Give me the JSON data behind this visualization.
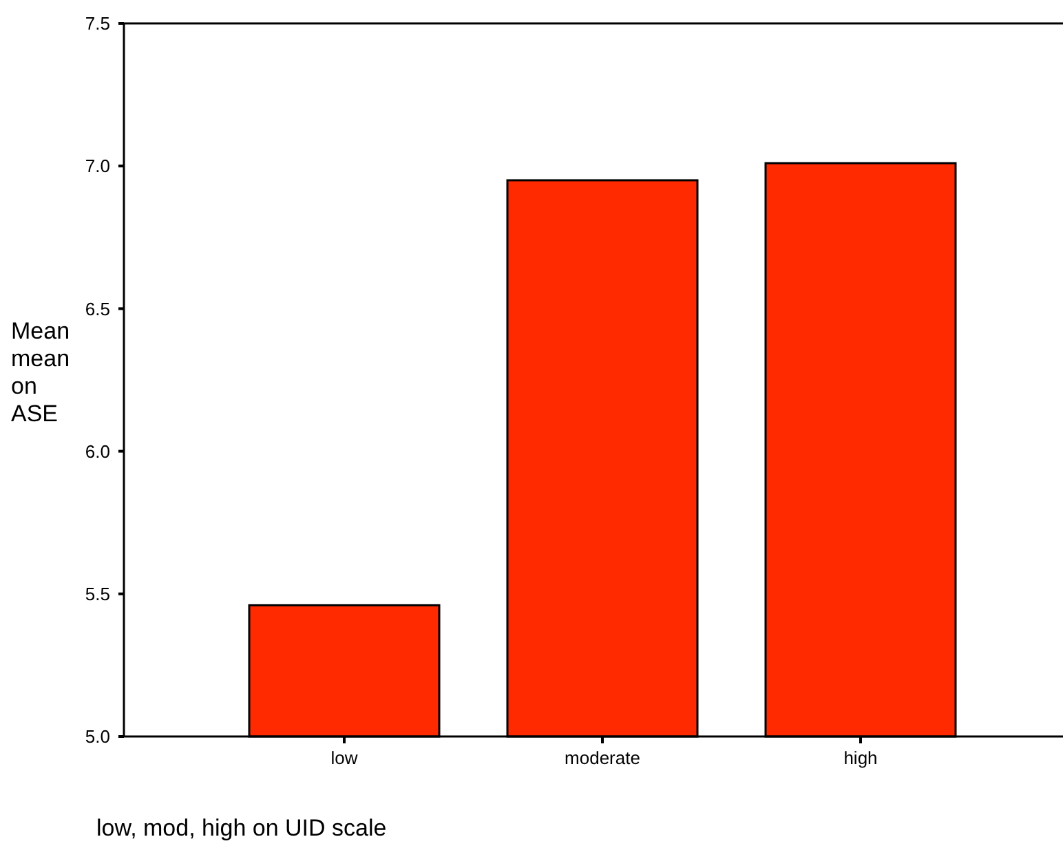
{
  "chart_data": {
    "type": "bar",
    "xlabel": "low, mod, high on UID scale",
    "ylabel": "Mean mean on ASE",
    "categories": [
      "low",
      "moderate",
      "high"
    ],
    "values": [
      5.46,
      6.95,
      7.01
    ],
    "color": "#ff2a00",
    "ylim": [
      5.0,
      7.5
    ],
    "yticks": [
      {
        "value": 5,
        "label": "5.0"
      },
      {
        "value": 5.5,
        "label": "5.5"
      },
      {
        "value": 6,
        "label": "6.0"
      },
      {
        "value": 6.5,
        "label": "6.5"
      },
      {
        "value": 7,
        "label": "7.0"
      },
      {
        "value": 7.5,
        "label": "7.5"
      }
    ],
    "grid": false
  }
}
